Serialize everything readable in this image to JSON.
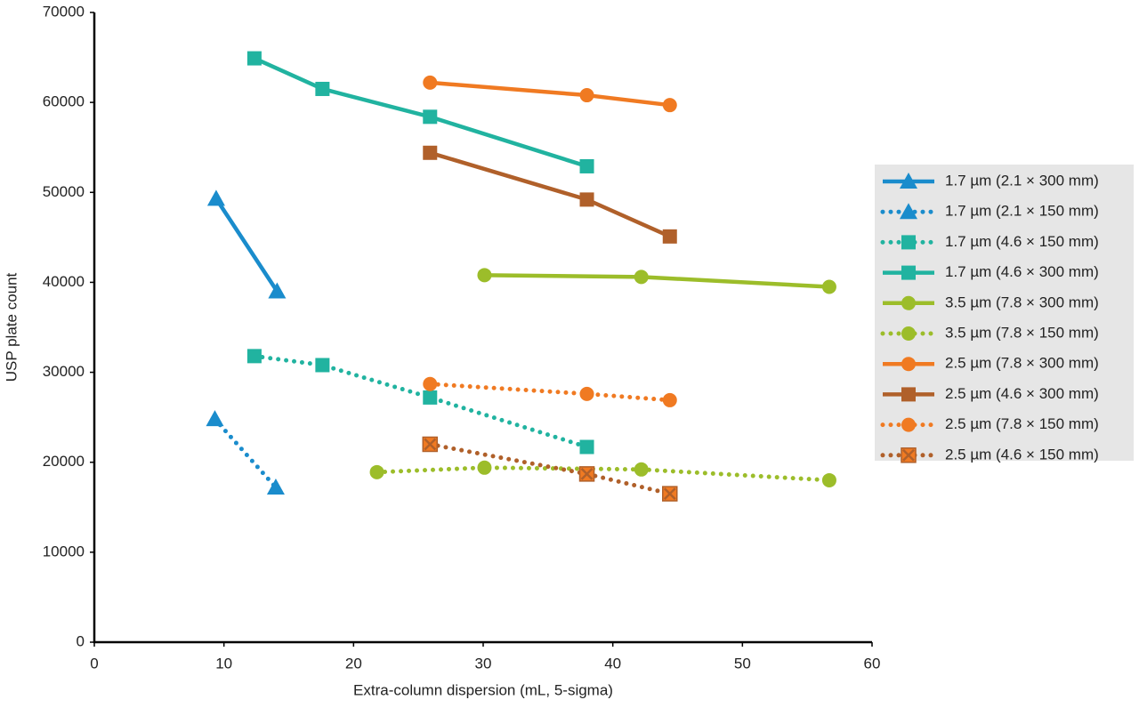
{
  "chart_data": {
    "type": "line",
    "xlabel": "Extra-column dispersion (mL, 5-sigma)",
    "ylabel": "USP plate count",
    "xlim": [
      0,
      60
    ],
    "xticks": [
      0,
      10,
      20,
      30,
      40,
      50,
      60
    ],
    "ylim": [
      0,
      70000
    ],
    "yticks": [
      0,
      10000,
      20000,
      30000,
      40000,
      50000,
      60000,
      70000
    ],
    "legend": "right",
    "series": [
      {
        "name": "1.7 µm (2.1 × 300 mm)",
        "color": "#1a8ccc",
        "dash": "solid",
        "marker": "triangle",
        "x": [
          9.4,
          14.1
        ],
        "values": [
          49300,
          39000
        ]
      },
      {
        "name": "1.7 µm (2.1 × 150 mm)",
        "color": "#1a8ccc",
        "dash": "dotted",
        "marker": "triangle",
        "x": [
          9.3,
          14.0
        ],
        "values": [
          24800,
          17200
        ]
      },
      {
        "name": "1.7 µm (4.6 × 150 mm)",
        "color": "#21b3a0",
        "dash": "dotted",
        "marker": "square",
        "x": [
          12.35,
          17.6,
          25.9,
          38.0
        ],
        "values": [
          31800,
          30800,
          27200,
          21700
        ]
      },
      {
        "name": "1.7 µm (4.6 × 300 mm)",
        "color": "#21b3a0",
        "dash": "solid",
        "marker": "square",
        "x": [
          12.35,
          17.6,
          25.9,
          38.0
        ],
        "values": [
          64900,
          61500,
          58400,
          52900
        ]
      },
      {
        "name": "3.5 µm (7.8 × 300 mm)",
        "color": "#9cbd2a",
        "dash": "solid",
        "marker": "circle",
        "x": [
          30.1,
          42.2,
          56.7
        ],
        "values": [
          40800,
          40600,
          39500
        ]
      },
      {
        "name": "3.5 µm (7.8 × 150 mm)",
        "color": "#9cbd2a",
        "dash": "dotted",
        "marker": "circle",
        "x": [
          21.8,
          30.1,
          42.2,
          56.7
        ],
        "values": [
          18900,
          19400,
          19200,
          18000
        ]
      },
      {
        "name": "2.5 µm (7.8 × 300 mm)",
        "color": "#f07a22",
        "dash": "solid",
        "marker": "circle",
        "x": [
          25.9,
          38.0,
          44.4
        ],
        "values": [
          62200,
          60800,
          59700
        ]
      },
      {
        "name": "2.5 µm (4.6 × 300 mm)",
        "color": "#b0602a",
        "dash": "solid",
        "marker": "square",
        "x": [
          25.9,
          38.0,
          44.4
        ],
        "values": [
          54400,
          49200,
          45100
        ]
      },
      {
        "name": "2.5 µm (7.8 × 150 mm)",
        "color": "#f07a22",
        "dash": "dotted",
        "marker": "circle",
        "x": [
          25.9,
          38.0,
          44.4
        ],
        "values": [
          28700,
          27600,
          26900
        ]
      },
      {
        "name": "2.5 µm (4.6 × 150 mm)",
        "color": "#b0602a",
        "dash": "dotted",
        "marker": "square-x",
        "x": [
          25.9,
          38.0,
          44.4
        ],
        "values": [
          22000,
          18700,
          16500
        ]
      }
    ]
  }
}
